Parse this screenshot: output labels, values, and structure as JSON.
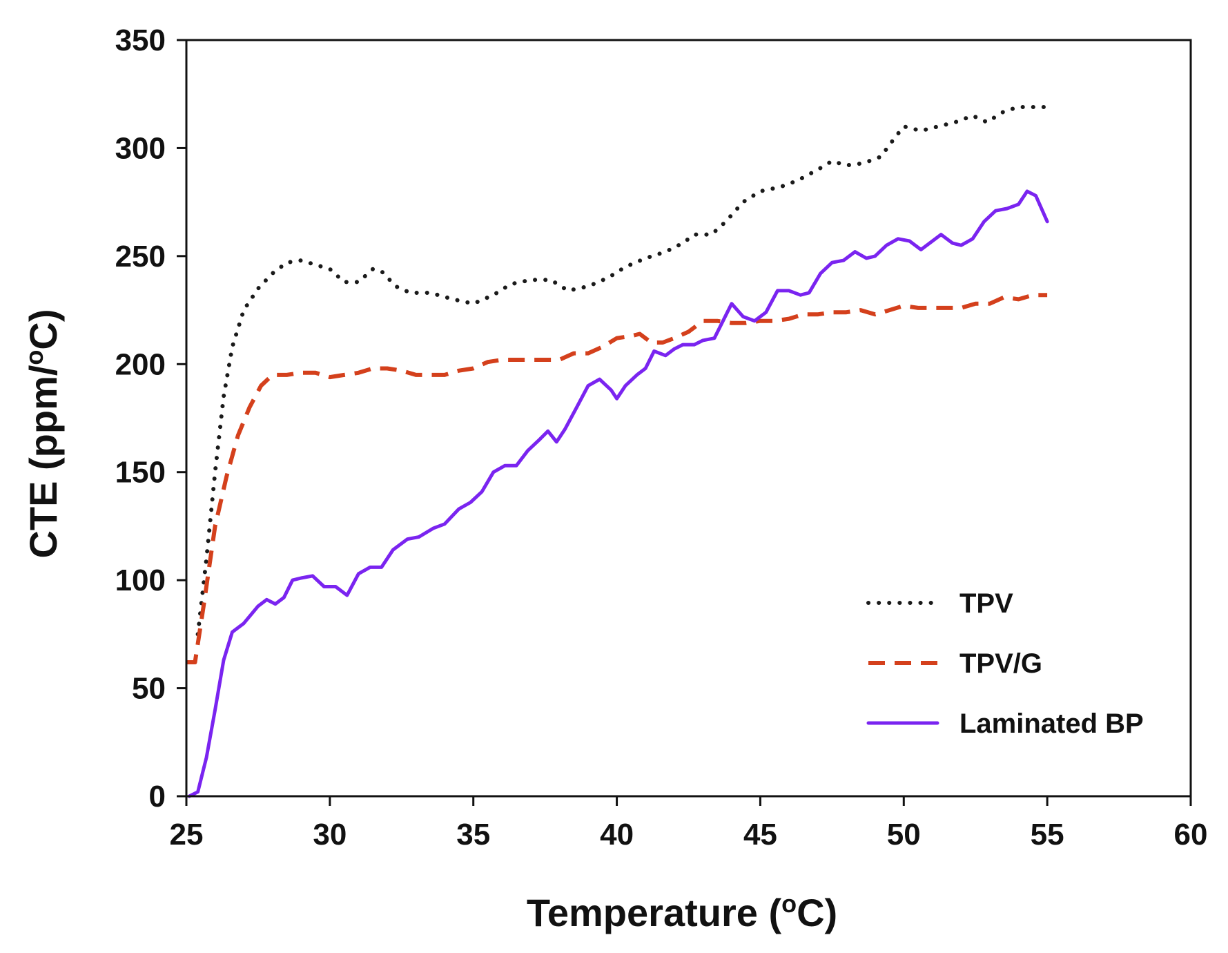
{
  "chart_data": {
    "type": "line",
    "title": "",
    "xlabel": {
      "pre": "Temperature (",
      "sup": "o",
      "post": "C)"
    },
    "ylabel": {
      "pre": "CTE (ppm/",
      "sup": "o",
      "post": "C)"
    },
    "xlim": [
      25,
      60
    ],
    "ylim": [
      0,
      350
    ],
    "xticks": [
      25,
      30,
      35,
      40,
      45,
      50,
      55,
      60
    ],
    "yticks": [
      0,
      50,
      100,
      150,
      200,
      250,
      300,
      350
    ],
    "grid": false,
    "legend_position": "bottom-right",
    "series": [
      {
        "name": "TPV",
        "color": "#1a1a1a",
        "style": "dotted",
        "points": [
          [
            25.4,
            75
          ],
          [
            25.7,
            110
          ],
          [
            26.0,
            150
          ],
          [
            26.3,
            185
          ],
          [
            26.6,
            208
          ],
          [
            27.0,
            225
          ],
          [
            27.5,
            235
          ],
          [
            28.0,
            242
          ],
          [
            28.5,
            247
          ],
          [
            29.0,
            248
          ],
          [
            29.5,
            246
          ],
          [
            30.0,
            244
          ],
          [
            30.5,
            238
          ],
          [
            31.0,
            238
          ],
          [
            31.5,
            244
          ],
          [
            31.8,
            243
          ],
          [
            32.3,
            236
          ],
          [
            32.8,
            233
          ],
          [
            33.5,
            233
          ],
          [
            34.3,
            230
          ],
          [
            35.0,
            228
          ],
          [
            35.7,
            232
          ],
          [
            36.3,
            237
          ],
          [
            37.0,
            239
          ],
          [
            37.7,
            239
          ],
          [
            38.3,
            234
          ],
          [
            39.0,
            236
          ],
          [
            39.7,
            240
          ],
          [
            40.3,
            245
          ],
          [
            41.0,
            249
          ],
          [
            41.7,
            252
          ],
          [
            42.3,
            256
          ],
          [
            42.7,
            260
          ],
          [
            43.3,
            260
          ],
          [
            43.8,
            266
          ],
          [
            44.4,
            275
          ],
          [
            45.0,
            280
          ],
          [
            45.7,
            282
          ],
          [
            46.3,
            285
          ],
          [
            47.0,
            290
          ],
          [
            47.5,
            294
          ],
          [
            48.0,
            292
          ],
          [
            48.6,
            293
          ],
          [
            49.2,
            296
          ],
          [
            49.7,
            305
          ],
          [
            50.0,
            310
          ],
          [
            50.6,
            308
          ],
          [
            51.2,
            310
          ],
          [
            51.8,
            312
          ],
          [
            52.4,
            315
          ],
          [
            52.9,
            312
          ],
          [
            53.5,
            317
          ],
          [
            54.0,
            319
          ],
          [
            54.5,
            319
          ],
          [
            55.0,
            319
          ]
        ]
      },
      {
        "name": "TPV/G",
        "color": "#d4401c",
        "style": "dashed",
        "points": [
          [
            25.0,
            62
          ],
          [
            25.3,
            62
          ],
          [
            25.6,
            88
          ],
          [
            26.0,
            125
          ],
          [
            26.4,
            148
          ],
          [
            26.8,
            167
          ],
          [
            27.2,
            180
          ],
          [
            27.6,
            190
          ],
          [
            28.0,
            195
          ],
          [
            28.5,
            195
          ],
          [
            29.0,
            196
          ],
          [
            29.5,
            196
          ],
          [
            30.0,
            194
          ],
          [
            30.5,
            195
          ],
          [
            31.0,
            196
          ],
          [
            31.5,
            198
          ],
          [
            32.0,
            198
          ],
          [
            32.5,
            197
          ],
          [
            33.0,
            195
          ],
          [
            33.5,
            195
          ],
          [
            34.0,
            195
          ],
          [
            34.5,
            197
          ],
          [
            35.0,
            198
          ],
          [
            35.5,
            201
          ],
          [
            36.0,
            202
          ],
          [
            36.5,
            202
          ],
          [
            37.0,
            202
          ],
          [
            37.5,
            202
          ],
          [
            38.0,
            202
          ],
          [
            38.5,
            205
          ],
          [
            39.0,
            205
          ],
          [
            39.5,
            208
          ],
          [
            40.0,
            212
          ],
          [
            40.5,
            213
          ],
          [
            40.8,
            214
          ],
          [
            41.2,
            210
          ],
          [
            41.6,
            210
          ],
          [
            42.0,
            212
          ],
          [
            42.5,
            215
          ],
          [
            43.0,
            220
          ],
          [
            43.5,
            220
          ],
          [
            44.0,
            219
          ],
          [
            44.5,
            219
          ],
          [
            45.0,
            220
          ],
          [
            45.5,
            220
          ],
          [
            46.0,
            221
          ],
          [
            46.5,
            223
          ],
          [
            47.0,
            223
          ],
          [
            47.5,
            224
          ],
          [
            48.0,
            224
          ],
          [
            48.5,
            225
          ],
          [
            49.0,
            223
          ],
          [
            49.5,
            225
          ],
          [
            50.0,
            227
          ],
          [
            50.5,
            226
          ],
          [
            51.0,
            226
          ],
          [
            51.5,
            226
          ],
          [
            52.0,
            226
          ],
          [
            52.5,
            228
          ],
          [
            53.0,
            228
          ],
          [
            53.5,
            231
          ],
          [
            54.0,
            230
          ],
          [
            54.5,
            232
          ],
          [
            55.0,
            232
          ]
        ]
      },
      {
        "name": "Laminated BP",
        "color": "#7a24f0",
        "style": "solid",
        "points": [
          [
            25.1,
            0
          ],
          [
            25.4,
            2
          ],
          [
            25.7,
            18
          ],
          [
            26.0,
            40
          ],
          [
            26.3,
            63
          ],
          [
            26.6,
            76
          ],
          [
            27.0,
            80
          ],
          [
            27.5,
            88
          ],
          [
            27.8,
            91
          ],
          [
            28.1,
            89
          ],
          [
            28.4,
            92
          ],
          [
            28.7,
            100
          ],
          [
            29.0,
            101
          ],
          [
            29.4,
            102
          ],
          [
            29.8,
            97
          ],
          [
            30.2,
            97
          ],
          [
            30.6,
            93
          ],
          [
            31.0,
            103
          ],
          [
            31.4,
            106
          ],
          [
            31.8,
            106
          ],
          [
            32.2,
            114
          ],
          [
            32.7,
            119
          ],
          [
            33.1,
            120
          ],
          [
            33.6,
            124
          ],
          [
            34.0,
            126
          ],
          [
            34.5,
            133
          ],
          [
            34.9,
            136
          ],
          [
            35.3,
            141
          ],
          [
            35.7,
            150
          ],
          [
            36.1,
            153
          ],
          [
            36.5,
            153
          ],
          [
            36.9,
            160
          ],
          [
            37.3,
            165
          ],
          [
            37.6,
            169
          ],
          [
            37.9,
            164
          ],
          [
            38.2,
            170
          ],
          [
            38.6,
            180
          ],
          [
            39.0,
            190
          ],
          [
            39.4,
            193
          ],
          [
            39.8,
            188
          ],
          [
            40.0,
            184
          ],
          [
            40.3,
            190
          ],
          [
            40.7,
            195
          ],
          [
            41.0,
            198
          ],
          [
            41.3,
            206
          ],
          [
            41.7,
            204
          ],
          [
            42.0,
            207
          ],
          [
            42.3,
            209
          ],
          [
            42.7,
            209
          ],
          [
            43.0,
            211
          ],
          [
            43.4,
            212
          ],
          [
            43.7,
            220
          ],
          [
            44.0,
            228
          ],
          [
            44.4,
            222
          ],
          [
            44.8,
            220
          ],
          [
            45.2,
            224
          ],
          [
            45.6,
            234
          ],
          [
            46.0,
            234
          ],
          [
            46.4,
            232
          ],
          [
            46.7,
            233
          ],
          [
            47.1,
            242
          ],
          [
            47.5,
            247
          ],
          [
            47.9,
            248
          ],
          [
            48.3,
            252
          ],
          [
            48.7,
            249
          ],
          [
            49.0,
            250
          ],
          [
            49.4,
            255
          ],
          [
            49.8,
            258
          ],
          [
            50.2,
            257
          ],
          [
            50.6,
            253
          ],
          [
            50.9,
            256
          ],
          [
            51.3,
            260
          ],
          [
            51.7,
            256
          ],
          [
            52.0,
            255
          ],
          [
            52.4,
            258
          ],
          [
            52.8,
            266
          ],
          [
            53.2,
            271
          ],
          [
            53.6,
            272
          ],
          [
            54.0,
            274
          ],
          [
            54.3,
            280
          ],
          [
            54.6,
            278
          ],
          [
            55.0,
            266
          ]
        ]
      }
    ]
  }
}
